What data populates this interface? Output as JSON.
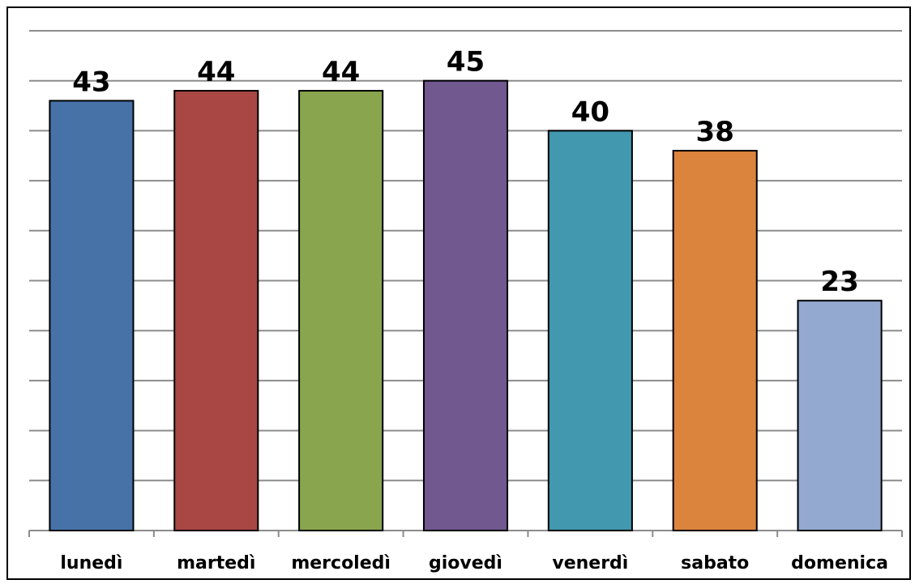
{
  "chart_data": {
    "type": "bar",
    "categories": [
      "lunedì",
      "martedì",
      "mercoledì",
      "giovedì",
      "venerdì",
      "sabato",
      "domenica"
    ],
    "values": [
      43,
      44,
      44,
      45,
      40,
      38,
      23
    ],
    "colors": [
      "#4672A8",
      "#A94744",
      "#89A54E",
      "#71588F",
      "#4198AF",
      "#DB843D",
      "#93A9CF"
    ],
    "data_labels": [
      "43",
      "44",
      "44",
      "45",
      "40",
      "38",
      "23"
    ],
    "ylim": [
      0,
      50
    ],
    "y_gridline_step": 5,
    "y_tick_labels_shown": false,
    "grid": true,
    "legend": "none",
    "title": "",
    "xlabel": "",
    "ylabel": ""
  }
}
